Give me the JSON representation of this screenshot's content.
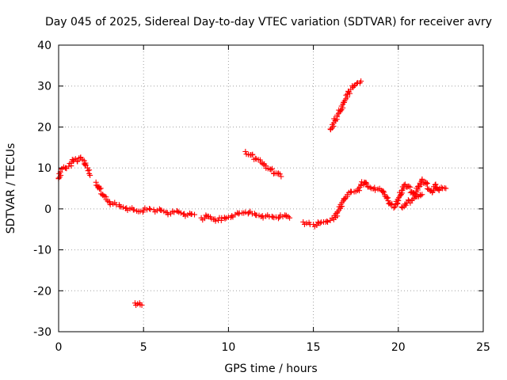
{
  "chart_data": {
    "type": "scatter",
    "title": "Day 045 of 2025, Sidereal Day-to-day VTEC variation (SDTVAR) for receiver avry",
    "xlabel": "GPS time / hours",
    "ylabel": "SDTVAR / TECUs",
    "xlim": [
      0,
      25
    ],
    "ylim": [
      -30,
      40
    ],
    "xticks": [
      0,
      5,
      10,
      15,
      20,
      25
    ],
    "xtick_labels": [
      "0",
      "5",
      "10",
      "15",
      "20",
      "25"
    ],
    "yticks": [
      -30,
      -20,
      -10,
      0,
      10,
      20,
      30,
      40
    ],
    "ytick_labels": [
      "-30",
      "-20",
      "-10",
      "0",
      "10",
      "20",
      "30",
      "40"
    ],
    "grid": true,
    "marker": "plus",
    "color": "#ff0000",
    "series": [
      {
        "name": "SDTVAR",
        "segments": [
          {
            "x": [
              0.0,
              0.1,
              0.2,
              0.3,
              0.45,
              0.6,
              0.75,
              0.9,
              1.0,
              1.1,
              1.2,
              1.3,
              1.4,
              1.5,
              1.6
            ],
            "y": [
              7.5,
              9.0,
              9.8,
              10.2,
              10.0,
              10.4,
              11.2,
              12.0,
              12.2,
              11.6,
              12.4,
              12.6,
              12.0,
              11.8,
              10.6
            ]
          },
          {
            "x": [
              1.7,
              1.8
            ],
            "y": [
              10.0,
              9.5
            ]
          },
          {
            "x": [
              1.8,
              1.85
            ],
            "y": [
              8.6,
              8.2
            ]
          },
          {
            "x": [
              2.2,
              2.4,
              2.6,
              2.8,
              3.0,
              3.2,
              3.4,
              3.6,
              3.8,
              4.0,
              4.2,
              4.4,
              4.6,
              4.8,
              5.0,
              5.2,
              5.4
            ],
            "y": [
              6.5,
              5.0,
              3.5,
              2.3,
              1.5,
              1.2,
              1.0,
              0.6,
              0.4,
              0.2,
              0.0,
              -0.2,
              -0.5,
              -0.6,
              -0.3,
              -0.2,
              -0.1
            ]
          },
          {
            "x": [
              5.6,
              5.8,
              6.0,
              6.2,
              6.4,
              6.6,
              6.8,
              7.0,
              7.2,
              7.4,
              7.6,
              7.8,
              8.0
            ],
            "y": [
              -0.2,
              -0.4,
              -0.3,
              -0.6,
              -0.9,
              -1.2,
              -0.8,
              -0.6,
              -1.0,
              -1.2,
              -1.5,
              -1.3,
              -1.4
            ]
          },
          {
            "x": [
              8.4,
              8.6,
              8.8,
              9.0,
              9.2,
              9.4,
              9.6,
              9.8,
              10.0,
              10.2,
              10.4,
              10.6,
              10.8,
              11.0,
              11.2,
              11.4,
              11.6,
              11.8,
              12.0,
              12.2,
              12.4,
              12.6,
              12.8,
              13.0,
              13.2,
              13.4,
              13.6
            ],
            "y": [
              -2.2,
              -2.3,
              -1.8,
              -2.4,
              -2.5,
              -2.8,
              -2.2,
              -2.4,
              -2.0,
              -1.7,
              -1.4,
              -1.2,
              -1.0,
              -0.8,
              -0.9,
              -1.2,
              -1.5,
              -1.6,
              -1.7,
              -1.8,
              -1.9,
              -2.0,
              -2.0,
              -2.0,
              -1.9,
              -1.6,
              -2.2
            ]
          },
          {
            "x": [
              14.4,
              14.6,
              14.8
            ],
            "y": [
              -3.2,
              -3.5,
              -3.8
            ]
          },
          {
            "x": [
              15.0,
              15.2,
              15.4,
              15.6,
              15.8,
              16.0,
              16.2,
              16.4,
              16.6,
              16.8,
              17.0,
              17.2,
              17.4,
              17.6,
              17.8,
              18.0,
              18.2,
              18.4,
              18.6,
              18.8,
              19.0,
              19.2,
              19.4,
              19.6,
              19.8,
              20.0,
              20.2,
              20.4,
              20.6,
              20.8,
              21.0,
              21.2,
              21.4,
              21.6,
              21.8,
              22.0,
              22.2,
              22.4,
              22.6,
              22.8
            ],
            "y": [
              -3.8,
              -4.0,
              -3.5,
              -3.2,
              -3.0,
              -2.8,
              -2.6,
              -1.0,
              0.5,
              2.5,
              3.5,
              4.0,
              4.2,
              4.5,
              6.0,
              6.5,
              5.5,
              5.0,
              5.2,
              4.8,
              4.5,
              3.5,
              2.0,
              1.0,
              0.5,
              2.0,
              4.5,
              6.0,
              5.5,
              4.0,
              3.5,
              5.5,
              7.0,
              6.5,
              4.8,
              4.0,
              6.0,
              4.5,
              5.0,
              5.0
            ]
          },
          {
            "x": [
              20.2,
              20.5,
              20.8,
              21.1,
              21.4
            ],
            "y": [
              0.5,
              1.5,
              2.0,
              3.0,
              3.5
            ]
          },
          {
            "x": [
              11.0,
              11.3,
              11.6,
              11.9,
              12.2,
              12.5,
              12.8,
              13.1
            ],
            "y": [
              14.0,
              13.2,
              12.3,
              11.4,
              10.5,
              9.6,
              8.7,
              7.9
            ]
          },
          {
            "x": [
              16.0,
              16.2,
              16.4,
              16.6,
              16.8,
              17.0,
              17.2,
              17.4,
              17.6,
              17.8
            ],
            "y": [
              19.5,
              21.0,
              22.5,
              24.0,
              26.0,
              28.0,
              29.2,
              30.0,
              30.8,
              31.2
            ]
          },
          {
            "x": [
              4.5,
              4.65,
              4.8,
              4.9
            ],
            "y": [
              -23.0,
              -23.2,
              -23.4,
              -23.5
            ]
          }
        ]
      }
    ]
  }
}
